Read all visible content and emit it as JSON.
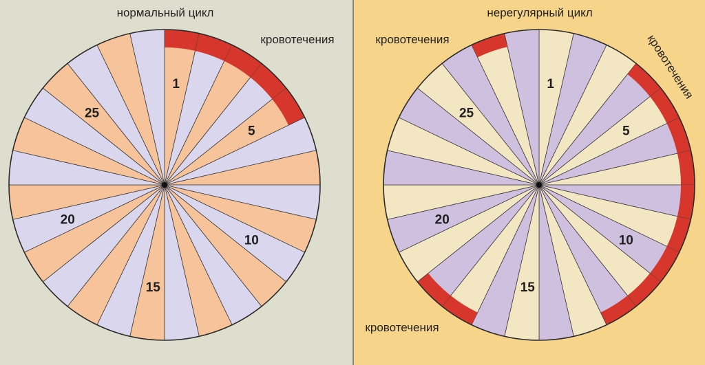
{
  "left_panel": {
    "title": "нормальный цикл",
    "bleeding_label": "кровотечения",
    "day_labels": [
      "1",
      "5",
      "10",
      "15",
      "20",
      "25"
    ],
    "days": 28,
    "bleeding_days": [
      1,
      2,
      3,
      4,
      5
    ],
    "colors": {
      "background": "#dedecf",
      "segment_a": "#f7c39a",
      "segment_b": "#d9d6ee",
      "bleeding": "#d6362b"
    }
  },
  "right_panel": {
    "title": "нерегулярный цикл",
    "bleeding_labels": [
      "кровотечения",
      "кровотечения",
      "кровотечения"
    ],
    "day_labels": [
      "1",
      "5",
      "10",
      "15",
      "20",
      "25"
    ],
    "days": 28,
    "bleeding_days": [
      4,
      5,
      6,
      7,
      8,
      9,
      10,
      11,
      12,
      17,
      18,
      27
    ],
    "colors": {
      "background": "#f6d58a",
      "segment_a": "#f3e6c2",
      "segment_b": "#cfc0e0",
      "bleeding": "#d6362b"
    }
  }
}
